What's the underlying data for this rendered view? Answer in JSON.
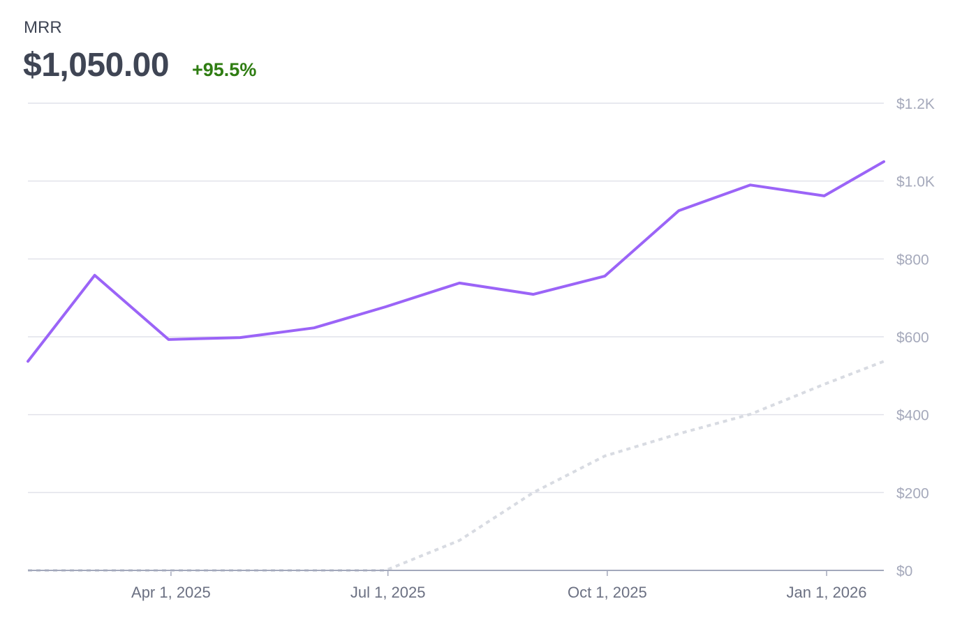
{
  "header": {
    "title": "MRR",
    "value": "$1,050.00",
    "change": "+95.5%"
  },
  "colors": {
    "primary": "#9b64f7",
    "comparison": "#d8dbe2",
    "positive": "#2f7d12",
    "grid": "#e1e2ea",
    "axis": "#a3a8bb"
  },
  "chart_data": {
    "type": "line",
    "title": "MRR",
    "xlabel": "",
    "ylabel": "",
    "ylim": [
      0,
      1200
    ],
    "xlim": [
      "2025-01-31",
      "2026-01-25"
    ],
    "grid": true,
    "yticks": [
      0,
      200,
      400,
      600,
      800,
      1000,
      1200
    ],
    "ytick_labels": [
      "$0",
      "$200",
      "$400",
      "$600",
      "$800",
      "$1.0K",
      "$1.2K"
    ],
    "xticks": [
      "2025-04-01",
      "2025-07-01",
      "2025-10-01",
      "2026-01-01"
    ],
    "xtick_labels": [
      "Apr 1, 2025",
      "Jul 1, 2025",
      "Oct 1, 2025",
      "Jan 1, 2026"
    ],
    "x": [
      "2025-01-31",
      "2025-02-28",
      "2025-03-31",
      "2025-04-30",
      "2025-05-31",
      "2025-06-30",
      "2025-07-31",
      "2025-08-31",
      "2025-09-30",
      "2025-10-31",
      "2025-11-30",
      "2025-12-31",
      "2026-01-25"
    ],
    "series": [
      {
        "style": "solid",
        "color": "#9b64f7",
        "values": [
          537,
          758,
          593,
          598,
          623,
          677,
          738,
          709,
          756,
          924,
          990,
          962,
          1050
        ]
      },
      {
        "style": "dotted",
        "color": "#d8dbe2",
        "values": [
          0,
          0,
          0,
          0,
          0,
          0,
          77,
          200,
          294,
          351,
          401,
          478,
          537
        ]
      }
    ]
  }
}
